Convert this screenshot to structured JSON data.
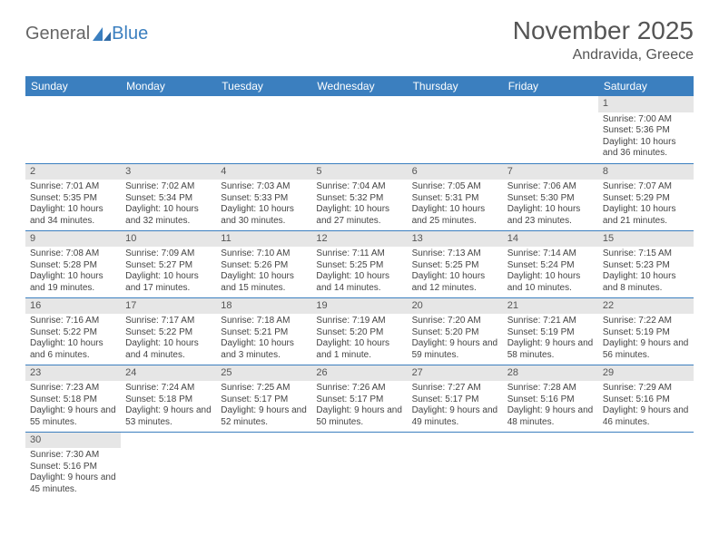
{
  "brand": {
    "part1": "General",
    "part2": "Blue"
  },
  "title": "November 2025",
  "subtitle": "Andravida, Greece",
  "colors": {
    "header_bg": "#3b7fbf",
    "header_text": "#ffffff",
    "daynum_bg": "#e6e6e6",
    "rule": "#3b7fbf",
    "body_text": "#444444",
    "title_text": "#555555"
  },
  "weekdays": [
    "Sunday",
    "Monday",
    "Tuesday",
    "Wednesday",
    "Thursday",
    "Friday",
    "Saturday"
  ],
  "days": {
    "1": {
      "sunrise": "Sunrise: 7:00 AM",
      "sunset": "Sunset: 5:36 PM",
      "daylight": "Daylight: 10 hours and 36 minutes."
    },
    "2": {
      "sunrise": "Sunrise: 7:01 AM",
      "sunset": "Sunset: 5:35 PM",
      "daylight": "Daylight: 10 hours and 34 minutes."
    },
    "3": {
      "sunrise": "Sunrise: 7:02 AM",
      "sunset": "Sunset: 5:34 PM",
      "daylight": "Daylight: 10 hours and 32 minutes."
    },
    "4": {
      "sunrise": "Sunrise: 7:03 AM",
      "sunset": "Sunset: 5:33 PM",
      "daylight": "Daylight: 10 hours and 30 minutes."
    },
    "5": {
      "sunrise": "Sunrise: 7:04 AM",
      "sunset": "Sunset: 5:32 PM",
      "daylight": "Daylight: 10 hours and 27 minutes."
    },
    "6": {
      "sunrise": "Sunrise: 7:05 AM",
      "sunset": "Sunset: 5:31 PM",
      "daylight": "Daylight: 10 hours and 25 minutes."
    },
    "7": {
      "sunrise": "Sunrise: 7:06 AM",
      "sunset": "Sunset: 5:30 PM",
      "daylight": "Daylight: 10 hours and 23 minutes."
    },
    "8": {
      "sunrise": "Sunrise: 7:07 AM",
      "sunset": "Sunset: 5:29 PM",
      "daylight": "Daylight: 10 hours and 21 minutes."
    },
    "9": {
      "sunrise": "Sunrise: 7:08 AM",
      "sunset": "Sunset: 5:28 PM",
      "daylight": "Daylight: 10 hours and 19 minutes."
    },
    "10": {
      "sunrise": "Sunrise: 7:09 AM",
      "sunset": "Sunset: 5:27 PM",
      "daylight": "Daylight: 10 hours and 17 minutes."
    },
    "11": {
      "sunrise": "Sunrise: 7:10 AM",
      "sunset": "Sunset: 5:26 PM",
      "daylight": "Daylight: 10 hours and 15 minutes."
    },
    "12": {
      "sunrise": "Sunrise: 7:11 AM",
      "sunset": "Sunset: 5:25 PM",
      "daylight": "Daylight: 10 hours and 14 minutes."
    },
    "13": {
      "sunrise": "Sunrise: 7:13 AM",
      "sunset": "Sunset: 5:25 PM",
      "daylight": "Daylight: 10 hours and 12 minutes."
    },
    "14": {
      "sunrise": "Sunrise: 7:14 AM",
      "sunset": "Sunset: 5:24 PM",
      "daylight": "Daylight: 10 hours and 10 minutes."
    },
    "15": {
      "sunrise": "Sunrise: 7:15 AM",
      "sunset": "Sunset: 5:23 PM",
      "daylight": "Daylight: 10 hours and 8 minutes."
    },
    "16": {
      "sunrise": "Sunrise: 7:16 AM",
      "sunset": "Sunset: 5:22 PM",
      "daylight": "Daylight: 10 hours and 6 minutes."
    },
    "17": {
      "sunrise": "Sunrise: 7:17 AM",
      "sunset": "Sunset: 5:22 PM",
      "daylight": "Daylight: 10 hours and 4 minutes."
    },
    "18": {
      "sunrise": "Sunrise: 7:18 AM",
      "sunset": "Sunset: 5:21 PM",
      "daylight": "Daylight: 10 hours and 3 minutes."
    },
    "19": {
      "sunrise": "Sunrise: 7:19 AM",
      "sunset": "Sunset: 5:20 PM",
      "daylight": "Daylight: 10 hours and 1 minute."
    },
    "20": {
      "sunrise": "Sunrise: 7:20 AM",
      "sunset": "Sunset: 5:20 PM",
      "daylight": "Daylight: 9 hours and 59 minutes."
    },
    "21": {
      "sunrise": "Sunrise: 7:21 AM",
      "sunset": "Sunset: 5:19 PM",
      "daylight": "Daylight: 9 hours and 58 minutes."
    },
    "22": {
      "sunrise": "Sunrise: 7:22 AM",
      "sunset": "Sunset: 5:19 PM",
      "daylight": "Daylight: 9 hours and 56 minutes."
    },
    "23": {
      "sunrise": "Sunrise: 7:23 AM",
      "sunset": "Sunset: 5:18 PM",
      "daylight": "Daylight: 9 hours and 55 minutes."
    },
    "24": {
      "sunrise": "Sunrise: 7:24 AM",
      "sunset": "Sunset: 5:18 PM",
      "daylight": "Daylight: 9 hours and 53 minutes."
    },
    "25": {
      "sunrise": "Sunrise: 7:25 AM",
      "sunset": "Sunset: 5:17 PM",
      "daylight": "Daylight: 9 hours and 52 minutes."
    },
    "26": {
      "sunrise": "Sunrise: 7:26 AM",
      "sunset": "Sunset: 5:17 PM",
      "daylight": "Daylight: 9 hours and 50 minutes."
    },
    "27": {
      "sunrise": "Sunrise: 7:27 AM",
      "sunset": "Sunset: 5:17 PM",
      "daylight": "Daylight: 9 hours and 49 minutes."
    },
    "28": {
      "sunrise": "Sunrise: 7:28 AM",
      "sunset": "Sunset: 5:16 PM",
      "daylight": "Daylight: 9 hours and 48 minutes."
    },
    "29": {
      "sunrise": "Sunrise: 7:29 AM",
      "sunset": "Sunset: 5:16 PM",
      "daylight": "Daylight: 9 hours and 46 minutes."
    },
    "30": {
      "sunrise": "Sunrise: 7:30 AM",
      "sunset": "Sunset: 5:16 PM",
      "daylight": "Daylight: 9 hours and 45 minutes."
    }
  },
  "grid": [
    [
      null,
      null,
      null,
      null,
      null,
      null,
      "1"
    ],
    [
      "2",
      "3",
      "4",
      "5",
      "6",
      "7",
      "8"
    ],
    [
      "9",
      "10",
      "11",
      "12",
      "13",
      "14",
      "15"
    ],
    [
      "16",
      "17",
      "18",
      "19",
      "20",
      "21",
      "22"
    ],
    [
      "23",
      "24",
      "25",
      "26",
      "27",
      "28",
      "29"
    ],
    [
      "30",
      null,
      null,
      null,
      null,
      null,
      null
    ]
  ]
}
